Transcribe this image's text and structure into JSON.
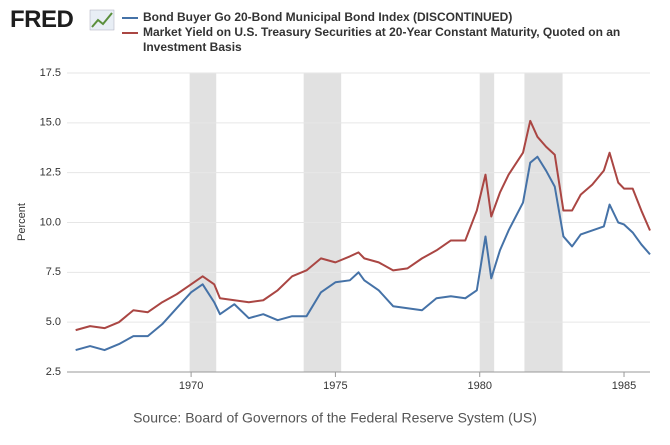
{
  "chart_data": {
    "type": "line",
    "logo": "FRED",
    "y_label": "Percent",
    "source": "Source: Board of Governors of the Federal Reserve System (US)",
    "x": [
      1966,
      1966.5,
      1967,
      1967.5,
      1968,
      1968.5,
      1969,
      1969.5,
      1970,
      1970.4,
      1970.8,
      1971,
      1971.5,
      1972,
      1972.5,
      1973,
      1973.5,
      1974,
      1974.5,
      1975,
      1975.5,
      1975.8,
      1976,
      1976.5,
      1977,
      1977.5,
      1978,
      1978.5,
      1979,
      1979.5,
      1979.9,
      1980.2,
      1980.4,
      1980.7,
      1981,
      1981.5,
      1981.75,
      1982,
      1982.3,
      1982.6,
      1982.9,
      1983.2,
      1983.5,
      1983.9,
      1984.3,
      1984.5,
      1984.8,
      1985,
      1985.3,
      1985.6,
      1985.9
    ],
    "series": [
      {
        "name": "Bond Buyer Go 20-Bond Municipal Bond Index (DISCONTINUED)",
        "color": "#4572a7",
        "values": [
          3.6,
          3.8,
          3.6,
          3.9,
          4.3,
          4.3,
          4.9,
          5.7,
          6.5,
          6.9,
          6.0,
          5.4,
          5.9,
          5.2,
          5.4,
          5.1,
          5.3,
          5.3,
          6.5,
          7.0,
          7.1,
          7.5,
          7.1,
          6.6,
          5.8,
          5.7,
          5.6,
          6.2,
          6.3,
          6.2,
          6.6,
          9.3,
          7.2,
          8.6,
          9.6,
          11.0,
          13.0,
          13.3,
          12.6,
          11.8,
          9.3,
          8.8,
          9.4,
          9.6,
          9.8,
          10.9,
          10.0,
          9.9,
          9.5,
          8.9,
          8.4
        ]
      },
      {
        "name": "Market Yield on U.S. Treasury Securities at 20-Year Constant Maturity, Quoted on an Investment Basis",
        "color": "#aa4643",
        "values": [
          4.6,
          4.8,
          4.7,
          5.0,
          5.6,
          5.5,
          6.0,
          6.4,
          6.9,
          7.3,
          6.9,
          6.2,
          6.1,
          6.0,
          6.1,
          6.6,
          7.3,
          7.6,
          8.2,
          8.0,
          8.3,
          8.5,
          8.2,
          8.0,
          7.6,
          7.7,
          8.2,
          8.6,
          9.1,
          9.1,
          10.6,
          12.4,
          10.3,
          11.5,
          12.4,
          13.5,
          15.1,
          14.3,
          13.8,
          13.4,
          10.6,
          10.6,
          11.4,
          11.9,
          12.6,
          13.5,
          12.0,
          11.7,
          11.7,
          10.6,
          9.6
        ]
      }
    ],
    "recessions": [
      [
        1969.95,
        1970.87
      ],
      [
        1973.9,
        1975.2
      ],
      [
        1980.0,
        1980.5
      ],
      [
        1981.55,
        1982.87
      ]
    ],
    "recession_color": "#e1e1e1",
    "xlim": [
      1965.7,
      1985.9
    ],
    "xticks": [
      1970,
      1975,
      1980,
      1985
    ],
    "ylim": [
      2.5,
      17.5
    ],
    "yticks": [
      2.5,
      {
        "value": 5,
        "label": "5.0"
      },
      7.5,
      {
        "value": 10,
        "label": "10.0"
      },
      12.5,
      {
        "value": 15,
        "label": "15.0"
      },
      17.5
    ],
    "grid": true
  }
}
